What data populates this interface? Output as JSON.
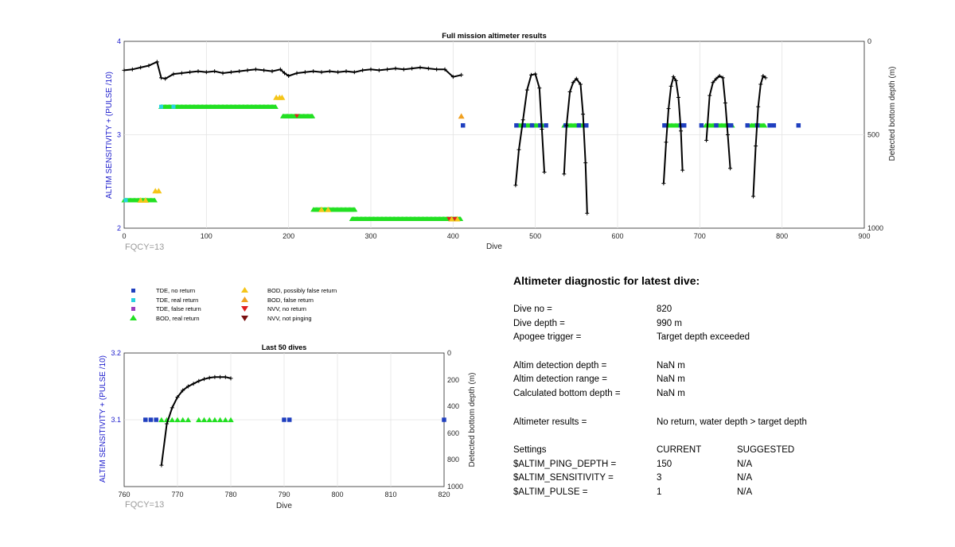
{
  "main_chart": {
    "title": "Full mission altimeter results",
    "xlabel": "Dive",
    "ylabel_left": "ALTIM SENSITIVITY + (PULSE /10)",
    "ylabel_right": "Detected bottom depth (m)",
    "note": "FQCY=13",
    "x_ticks": [
      "0",
      "100",
      "200",
      "300",
      "400",
      "500",
      "600",
      "700",
      "800",
      "900"
    ],
    "y_ticks_left": [
      "4",
      "3",
      "2"
    ],
    "y_ticks_right": [
      "0",
      "500",
      "1000"
    ]
  },
  "small_chart": {
    "title": "Last 50 dives",
    "xlabel": "Dive",
    "ylabel_left": "ALTIM SENSITIVITY + (PULSE /10)",
    "ylabel_right": "Detected bottom depth (m)",
    "note": "FQCY=13",
    "x_ticks": [
      "760",
      "770",
      "780",
      "790",
      "800",
      "810",
      "820"
    ],
    "y_ticks_left": [
      "3.2",
      "3.1"
    ],
    "y_ticks_right": [
      "0",
      "200",
      "400",
      "600",
      "800",
      "1000"
    ]
  },
  "legend": {
    "items": [
      {
        "label": "TDE, no return",
        "symbol": "square",
        "color": "#1f3fbf"
      },
      {
        "label": "TDE, real return",
        "symbol": "square",
        "color": "#27d3e0"
      },
      {
        "label": "TDE, false return",
        "symbol": "square",
        "color": "#9b3fbf"
      },
      {
        "label": "BOD, real return",
        "symbol": "triangle-up",
        "color": "#22e022"
      },
      {
        "label": "BOD, possibly false return",
        "symbol": "triangle-up",
        "color": "#f5c518"
      },
      {
        "label": "BOD, false return",
        "symbol": "triangle-up",
        "color": "#f0a020"
      },
      {
        "label": "NVV, no return",
        "symbol": "triangle-down",
        "color": "#e02020"
      },
      {
        "label": "NVV, not pinging",
        "symbol": "triangle-down",
        "color": "#7a1010"
      }
    ]
  },
  "diagnostic": {
    "heading": "Altimeter diagnostic for latest dive:",
    "dive_no_label": "Dive no =",
    "dive_no_value": "820",
    "dive_depth_label": "Dive depth =",
    "dive_depth_value": "990 m",
    "apogee_label": "Apogee trigger =",
    "apogee_value": "Target depth exceeded",
    "detection_depth_label": "Altim detection depth =",
    "detection_depth_value": "NaN m",
    "detection_range_label": "Altim detection range =",
    "detection_range_value": "NaN m",
    "bottom_depth_label": "Calculated bottom depth =",
    "bottom_depth_value": "NaN m",
    "results_label": "Altimeter results =",
    "results_value": "No return, water depth > target depth",
    "settings_label": "Settings",
    "current_header": "CURRENT",
    "suggested_header": "SUGGESTED",
    "ping_depth_label": "$ALTIM_PING_DEPTH =",
    "ping_depth_current": "150",
    "ping_depth_suggested": "N/A",
    "sensitivity_label": "$ALTIM_SENSITIVITY =",
    "sensitivity_current": "3",
    "sensitivity_suggested": "N/A",
    "pulse_label": "$ALTIM_PULSE =",
    "pulse_current": "1",
    "pulse_suggested": "N/A"
  },
  "chart_data": [
    {
      "type": "scatter",
      "title": "Full mission altimeter results",
      "xlabel": "Dive",
      "ylabel": "ALTIM SENSITIVITY + (PULSE /10)",
      "y2label": "Detected bottom depth (m)",
      "xlim": [
        0,
        900
      ],
      "ylim": [
        2,
        4
      ],
      "y2lim": [
        0,
        1000
      ],
      "y2_reversed": true,
      "grid": true,
      "bottom_depth_series": [
        {
          "name": "Detected bottom depth",
          "x": [
            0,
            10,
            20,
            30,
            40,
            45,
            50,
            60,
            70,
            80,
            90,
            100,
            110,
            120,
            130,
            140,
            150,
            160,
            170,
            180,
            190,
            195,
            200,
            210,
            220,
            230,
            240,
            250,
            260,
            270,
            280,
            290,
            300,
            310,
            320,
            330,
            340,
            350,
            360,
            370,
            380,
            390,
            400,
            410
          ],
          "y": [
            155,
            150,
            140,
            130,
            110,
            195,
            200,
            175,
            170,
            165,
            160,
            165,
            160,
            170,
            165,
            160,
            155,
            150,
            155,
            160,
            150,
            170,
            185,
            170,
            165,
            160,
            165,
            160,
            165,
            160,
            165,
            155,
            150,
            155,
            150,
            145,
            150,
            145,
            140,
            145,
            150,
            150,
            190,
            180
          ]
        },
        {
          "name": "Dives 476-511",
          "x": [
            476,
            480,
            485,
            490,
            495,
            500,
            505,
            508,
            511
          ],
          "y": [
            770,
            580,
            420,
            260,
            180,
            175,
            250,
            470,
            700
          ]
        },
        {
          "name": "Dives 535-563",
          "x": [
            535,
            538,
            542,
            546,
            550,
            555,
            558,
            561,
            563
          ],
          "y": [
            710,
            450,
            270,
            220,
            200,
            230,
            390,
            650,
            920
          ]
        },
        {
          "name": "Dives 656-679",
          "x": [
            656,
            659,
            662,
            665,
            668,
            671,
            674,
            677,
            679
          ],
          "y": [
            760,
            540,
            360,
            240,
            190,
            210,
            300,
            480,
            690
          ]
        },
        {
          "name": "Dives 708-737",
          "x": [
            708,
            712,
            716,
            720,
            724,
            728,
            731,
            734,
            737
          ],
          "y": [
            530,
            290,
            220,
            200,
            185,
            195,
            330,
            500,
            680
          ]
        },
        {
          "name": "Dives 765-780",
          "x": [
            765,
            768,
            771,
            774,
            777,
            780
          ],
          "y": [
            830,
            560,
            350,
            230,
            185,
            195
          ]
        }
      ],
      "tde_no_return": {
        "x": [
          477,
          486,
          496,
          506,
          513,
          537,
          553,
          562,
          657,
          677,
          681,
          702,
          720,
          735,
          738,
          758,
          770,
          785,
          790,
          820,
          412
        ],
        "y": [
          3.1,
          3.1,
          3.1,
          3.1,
          3.1,
          3.1,
          3.1,
          3.1,
          3.1,
          3.1,
          3.1,
          3.1,
          3.1,
          3.1,
          3.1,
          3.1,
          3.1,
          3.1,
          3.1,
          3.1,
          3.1
        ]
      },
      "tde_real_return": {
        "x": [
          2,
          45,
          60
        ],
        "y": [
          2.3,
          3.3,
          3.3
        ]
      },
      "bod_real_return_ranges": [
        {
          "x_range": [
            0,
            38
          ],
          "y": 2.3
        },
        {
          "x_range": [
            45,
            185
          ],
          "y": 3.3
        },
        {
          "x_range": [
            193,
            230
          ],
          "y": 3.2
        },
        {
          "x_range": [
            230,
            281
          ],
          "y": 2.2
        },
        {
          "x_range": [
            277,
            410
          ],
          "y": 2.1
        },
        {
          "x_range": [
            478,
            510
          ],
          "y": 3.1
        },
        {
          "x_range": [
            535,
            560
          ],
          "y": 3.1
        },
        {
          "x_range": [
            658,
            680
          ],
          "y": 3.1
        },
        {
          "x_range": [
            707,
            740
          ],
          "y": 3.1
        },
        {
          "x_range": [
            762,
            780
          ],
          "y": 3.1
        }
      ],
      "bod_possibly_false_return": {
        "x": [
          20,
          26,
          38,
          42,
          185,
          189,
          192,
          240,
          248,
          398,
          405
        ],
        "y": [
          2.3,
          2.3,
          2.4,
          2.4,
          3.4,
          3.4,
          3.4,
          2.2,
          2.2,
          2.1,
          2.1
        ]
      },
      "bod_false_return": {
        "x": [
          410
        ],
        "y": [
          3.2
        ]
      },
      "nvv_no_return": {
        "x": [
          210,
          395,
          402
        ],
        "y": [
          3.2,
          2.1,
          2.1
        ]
      }
    },
    {
      "type": "scatter",
      "title": "Last 50 dives",
      "xlabel": "Dive",
      "ylabel": "ALTIM SENSITIVITY + (PULSE /10)",
      "y2label": "Detected bottom depth (m)",
      "xlim": [
        760,
        820
      ],
      "ylim": [
        3.0,
        3.2
      ],
      "y2lim": [
        0,
        1000
      ],
      "y2_reversed": true,
      "grid": true,
      "bottom_depth": {
        "x": [
          767,
          768,
          769,
          770,
          771,
          772,
          773,
          774,
          775,
          776,
          777,
          778,
          779,
          780
        ],
        "y": [
          840,
          530,
          410,
          330,
          280,
          250,
          230,
          210,
          195,
          185,
          180,
          180,
          180,
          190
        ]
      },
      "tde_no_return": {
        "x": [
          764,
          765,
          766,
          790,
          791,
          820
        ],
        "y": [
          3.1,
          3.1,
          3.1,
          3.1,
          3.1,
          3.1
        ]
      },
      "bod_real_return": {
        "x": [
          767,
          768,
          769,
          770,
          771,
          772,
          774,
          775,
          776,
          777,
          778,
          779,
          780
        ],
        "y": [
          3.1,
          3.1,
          3.1,
          3.1,
          3.1,
          3.1,
          3.1,
          3.1,
          3.1,
          3.1,
          3.1,
          3.1,
          3.1
        ]
      }
    }
  ]
}
